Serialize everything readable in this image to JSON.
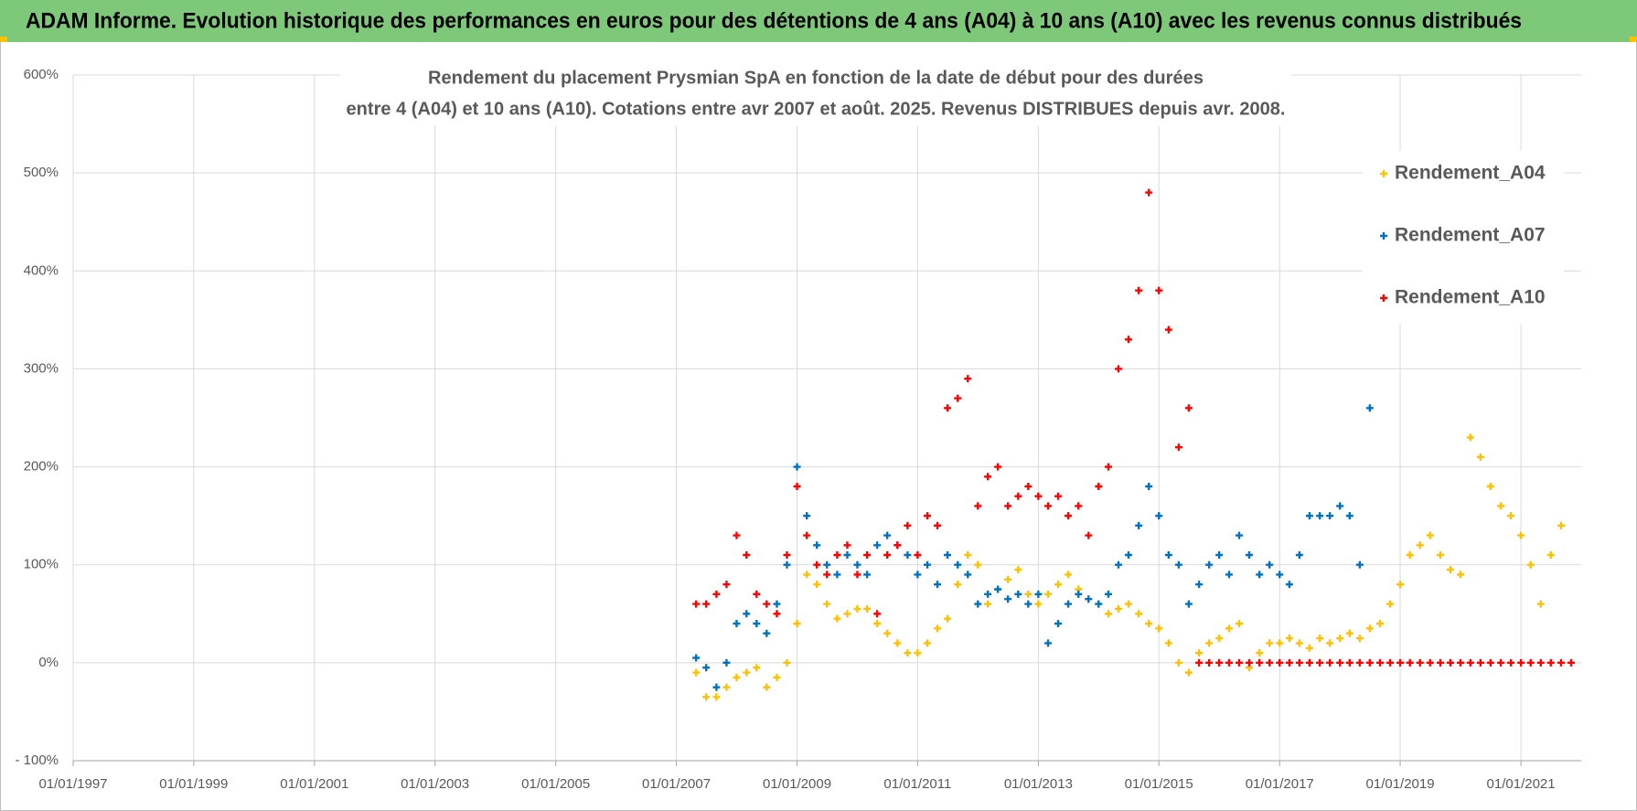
{
  "chart_data": {
    "type": "scatter",
    "title": "ADAM Informe. Evolution historique des performances en euros pour des détentions de 4 ans (A04) à 10 ans (A10) avec les revenus connus distribués",
    "subtitle": [
      "Rendement du placement Prysmian SpA en fonction de la date de début pour des durées",
      "entre 4 (A04) et 10 ans (A10).  Cotations entre avr 2007 et août. 2025. Revenus DISTRIBUES depuis avr. 2008."
    ],
    "xlim": [
      "01/01/1997",
      "01/01/2022"
    ],
    "xticks": [
      "01/01/1997",
      "01/01/1999",
      "01/01/2001",
      "01/01/2003",
      "01/01/2005",
      "01/01/2007",
      "01/01/2009",
      "01/01/2011",
      "01/01/2013",
      "01/01/2015",
      "01/01/2017",
      "01/01/2019",
      "01/01/2021"
    ],
    "ylim": [
      -100,
      600
    ],
    "yticks": [
      {
        "value": -100,
        "label": "- 100%"
      },
      {
        "value": 0,
        "label": "0%"
      },
      {
        "value": 100,
        "label": "100%"
      },
      {
        "value": 200,
        "label": "200%"
      },
      {
        "value": 300,
        "label": "300%"
      },
      {
        "value": 400,
        "label": "400%"
      },
      {
        "value": 500,
        "label": "500%"
      },
      {
        "value": 600,
        "label": "600%"
      }
    ],
    "grid": true,
    "legend": "upper right",
    "x": [
      "01/05/2007",
      "01/07/2007",
      "01/09/2007",
      "01/11/2007",
      "01/01/2008",
      "01/03/2008",
      "01/05/2008",
      "01/07/2008",
      "01/09/2008",
      "01/11/2008",
      "01/01/2009",
      "01/03/2009",
      "01/05/2009",
      "01/07/2009",
      "01/09/2009",
      "01/11/2009",
      "01/01/2010",
      "01/03/2010",
      "01/05/2010",
      "01/07/2010",
      "01/09/2010",
      "01/11/2010",
      "01/01/2011",
      "01/03/2011",
      "01/05/2011",
      "01/07/2011",
      "01/09/2011",
      "01/11/2011",
      "01/01/2012",
      "01/03/2012",
      "01/05/2012",
      "01/07/2012",
      "01/09/2012",
      "01/11/2012",
      "01/01/2013",
      "01/03/2013",
      "01/05/2013",
      "01/07/2013",
      "01/09/2013",
      "01/11/2013",
      "01/01/2014",
      "01/03/2014",
      "01/05/2014",
      "01/07/2014",
      "01/09/2014",
      "01/11/2014",
      "01/01/2015",
      "01/03/2015",
      "01/05/2015",
      "01/07/2015",
      "01/09/2015",
      "01/11/2015",
      "01/01/2016",
      "01/03/2016",
      "01/05/2016",
      "01/07/2016",
      "01/09/2016",
      "01/11/2016",
      "01/01/2017",
      "01/03/2017",
      "01/05/2017",
      "01/07/2017",
      "01/09/2017",
      "01/11/2017",
      "01/01/2018",
      "01/03/2018",
      "01/05/2018",
      "01/07/2018",
      "01/09/2018",
      "01/11/2018",
      "01/01/2019",
      "01/03/2019",
      "01/05/2019",
      "01/07/2019",
      "01/09/2019",
      "01/11/2019",
      "01/01/2020",
      "01/03/2020",
      "01/05/2020",
      "01/07/2020",
      "01/09/2020",
      "01/11/2020",
      "01/01/2021",
      "01/03/2021",
      "01/05/2021",
      "01/07/2021",
      "01/09/2021",
      "01/11/2021"
    ],
    "series": [
      {
        "name": "Rendement_A04",
        "color": "#ffc000",
        "values": [
          -10,
          -35,
          -35,
          -25,
          -15,
          -10,
          -5,
          -25,
          -15,
          0,
          40,
          90,
          80,
          60,
          45,
          50,
          55,
          55,
          40,
          30,
          20,
          10,
          10,
          20,
          35,
          45,
          80,
          110,
          100,
          60,
          75,
          85,
          95,
          70,
          60,
          70,
          80,
          90,
          75,
          65,
          60,
          50,
          55,
          60,
          50,
          40,
          35,
          20,
          0,
          -10,
          10,
          20,
          25,
          35,
          40,
          -5,
          10,
          20,
          20,
          25,
          20,
          15,
          25,
          20,
          25,
          30,
          25,
          35,
          40,
          60,
          80,
          110,
          120,
          130,
          110,
          95,
          90,
          230,
          210,
          180,
          160,
          150,
          130,
          100,
          60,
          110,
          140,
          null
        ]
      },
      {
        "name": "Rendement_A07",
        "color": "#0070c0",
        "values": [
          5,
          -5,
          -25,
          0,
          40,
          50,
          40,
          30,
          60,
          100,
          200,
          150,
          120,
          100,
          90,
          110,
          100,
          90,
          120,
          130,
          120,
          110,
          90,
          100,
          80,
          110,
          100,
          90,
          60,
          70,
          75,
          65,
          70,
          60,
          70,
          20,
          40,
          60,
          70,
          65,
          60,
          70,
          100,
          110,
          140,
          180,
          150,
          110,
          100,
          60,
          80,
          100,
          110,
          90,
          130,
          110,
          90,
          100,
          90,
          80,
          110,
          150,
          150,
          150,
          160,
          150,
          100,
          260,
          null,
          null,
          null,
          null,
          null,
          null,
          null,
          null,
          null,
          null,
          null,
          null,
          null,
          null,
          null,
          null,
          null,
          null,
          null,
          null
        ]
      },
      {
        "name": "Rendement_A10",
        "color": "#ff0000",
        "values": [
          60,
          60,
          70,
          80,
          130,
          110,
          70,
          60,
          50,
          110,
          180,
          130,
          100,
          90,
          110,
          120,
          90,
          110,
          50,
          110,
          120,
          140,
          110,
          150,
          140,
          260,
          270,
          290,
          160,
          190,
          200,
          160,
          170,
          180,
          170,
          160,
          170,
          150,
          160,
          130,
          180,
          200,
          300,
          330,
          380,
          480,
          380,
          340,
          220,
          260,
          0,
          0,
          0,
          0,
          0,
          0,
          0,
          0,
          0,
          0,
          0,
          0,
          0,
          0,
          0,
          0,
          0,
          0,
          0,
          0,
          0,
          0,
          0,
          0,
          0,
          0,
          0,
          0,
          0,
          0,
          0,
          0,
          0,
          0,
          0,
          0,
          0,
          0
        ]
      }
    ]
  }
}
